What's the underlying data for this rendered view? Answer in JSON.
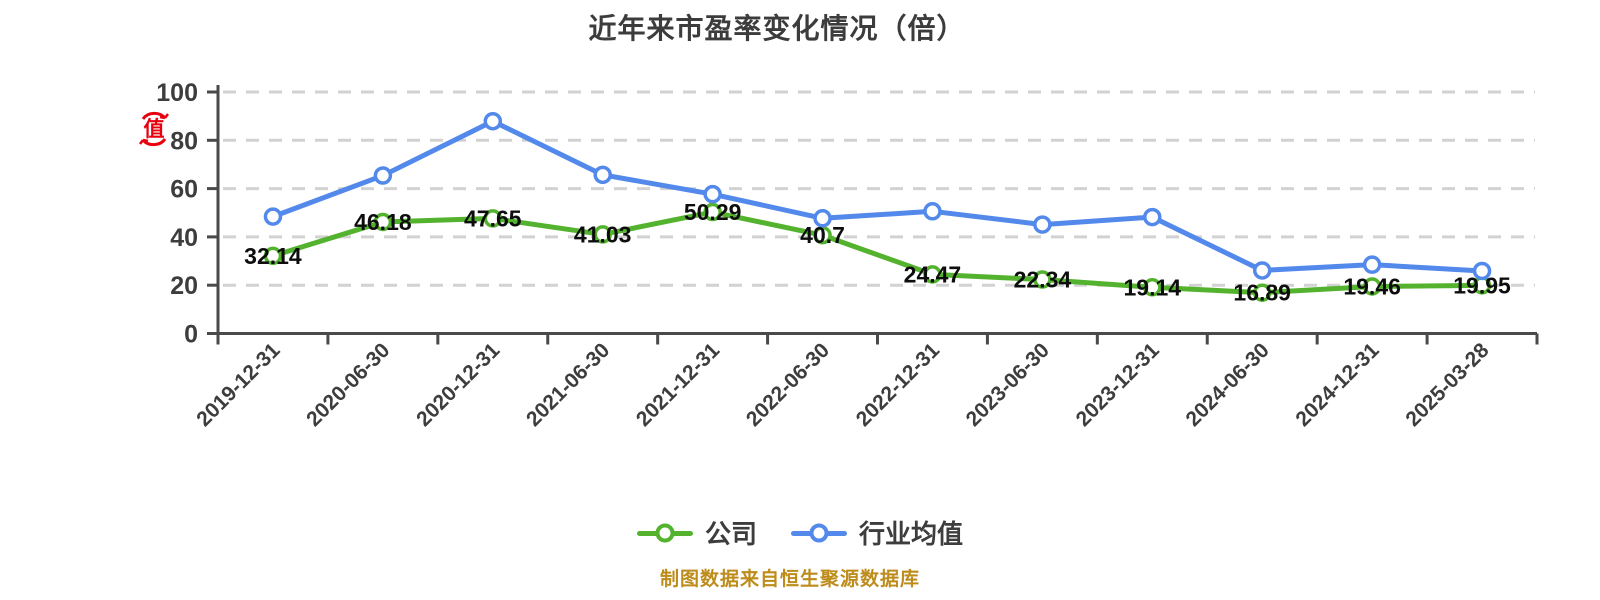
{
  "chart_data": {
    "type": "line",
    "title": "近年来市盈率变化情况（倍）",
    "categories": [
      "2019-12-31",
      "2020-06-30",
      "2020-12-31",
      "2021-06-30",
      "2021-12-31",
      "2022-06-30",
      "2022-12-31",
      "2023-06-30",
      "2023-12-31",
      "2024-06-30",
      "2024-12-31",
      "2025-03-28"
    ],
    "series": [
      {
        "name": "公司",
        "color": "#54b32e",
        "values": [
          32.14,
          46.18,
          47.65,
          41.03,
          50.29,
          40.7,
          24.47,
          22.34,
          19.14,
          16.89,
          19.46,
          19.95
        ],
        "labels": [
          "32.14",
          "46.18",
          "47.65",
          "41.03",
          "50.29",
          "40.7",
          "24.47",
          "22.34",
          "19.14",
          "16.89",
          "19.46",
          "19.95"
        ],
        "labels_visible": true
      },
      {
        "name": "行业均值",
        "color": "#5289eb",
        "values": [
          48.4,
          65.4,
          87.9,
          65.7,
          57.7,
          47.7,
          50.6,
          45.1,
          48.2,
          26.1,
          28.5,
          25.9
        ],
        "labels_visible": false
      }
    ],
    "ylim": [
      0,
      100
    ],
    "y_ticks": [
      0,
      20,
      40,
      60,
      80,
      100
    ],
    "grid": "horizontal dashed",
    "legend_position": "bottom",
    "x_label_rotation": 45
  },
  "style": {
    "axis_color": "#4a4a4a",
    "grid_color": "#d2d2d2",
    "tick_label_color": "#3d3d3d",
    "value_label_color": "#0d0d0d",
    "marker_fill": "#ffffff"
  },
  "footer": {
    "source_note": "制图数据来自恒生聚源数据库",
    "color": "#bd8c1b"
  },
  "watermark": {
    "seal_char": "值",
    "color": "#e8000f"
  }
}
